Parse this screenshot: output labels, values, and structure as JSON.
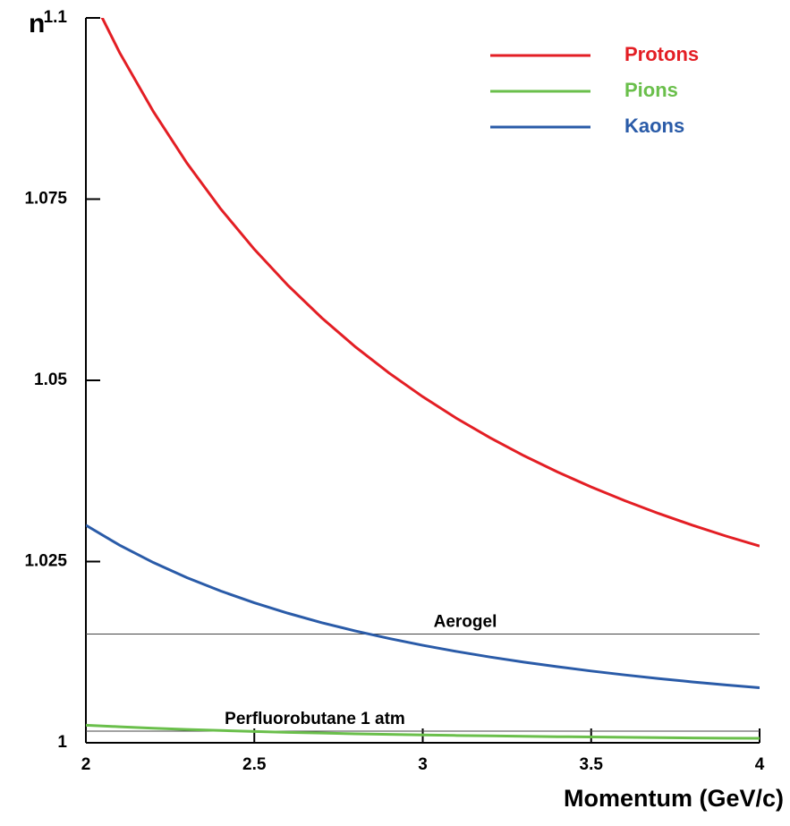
{
  "chart_data": {
    "type": "line",
    "y_label": "n",
    "x_label": "Momentum (GeV/c)",
    "x": [
      2.0,
      2.1,
      2.2,
      2.3,
      2.4,
      2.5,
      2.6,
      2.7,
      2.8,
      2.9,
      3.0,
      3.1,
      3.2,
      3.3,
      3.4,
      3.5,
      3.6,
      3.7,
      3.8,
      3.9,
      4.0
    ],
    "series": [
      {
        "name": "Protons",
        "color": "#e31e24",
        "values": [
          1.10452,
          1.09522,
          1.0871,
          1.07996,
          1.07366,
          1.06808,
          1.06309,
          1.05863,
          1.05462,
          1.05101,
          1.04774,
          1.04477,
          1.04207,
          1.03961,
          1.03736,
          1.03529,
          1.03339,
          1.03164,
          1.03002,
          1.02852,
          1.02713
        ]
      },
      {
        "name": "Pions",
        "color": "#6abf4b",
        "values": [
          1.00243,
          1.00221,
          1.00201,
          1.00184,
          1.00169,
          1.00156,
          1.00144,
          1.00134,
          1.00124,
          1.00116,
          1.00108,
          1.00101,
          1.00095,
          1.00089,
          1.00084,
          1.0008,
          1.00075,
          1.00071,
          1.00067,
          1.00064,
          1.00061
        ]
      },
      {
        "name": "Kaons",
        "color": "#2a5ba8",
        "values": [
          1.03001,
          1.02726,
          1.02487,
          1.02278,
          1.02094,
          1.01931,
          1.01787,
          1.01657,
          1.01543,
          1.01439,
          1.01345,
          1.0126,
          1.01183,
          1.01113,
          1.01049,
          1.0099,
          1.00936,
          1.00886,
          1.0084,
          1.00798,
          1.00759
        ]
      }
    ],
    "reference_lines": [
      {
        "label": "Aerogel",
        "value": 1.015
      },
      {
        "label": "Perfluorobutane  1 atm",
        "value": 1.0016
      }
    ],
    "xlim": [
      2,
      4
    ],
    "ylim": [
      1,
      1.1
    ],
    "xticks": [
      2,
      2.5,
      3,
      3.5,
      4
    ],
    "yticks": [
      1,
      1.025,
      1.05,
      1.075,
      1.1
    ],
    "grid": false,
    "legend_position": "upper-right"
  }
}
